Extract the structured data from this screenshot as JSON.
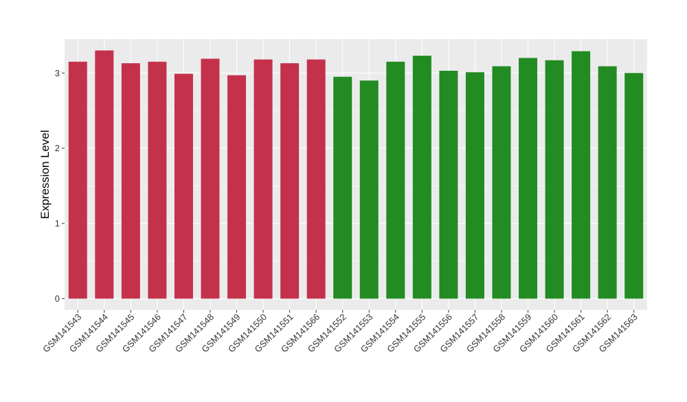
{
  "chart_data": {
    "type": "bar",
    "title": "",
    "xlabel": "",
    "ylabel": "Expression Level",
    "ylim": [
      -0.15,
      3.45
    ],
    "yticks": [
      0,
      1,
      2,
      3
    ],
    "grid": true,
    "legend": "none",
    "panel_background": "#EBEBEB",
    "gridline_color": "#FFFFFF",
    "categories": [
      "GSM141543",
      "GSM141544",
      "GSM141545",
      "GSM141546",
      "GSM141547",
      "GSM141548",
      "GSM141549",
      "GSM141550",
      "GSM141551",
      "GSM141566",
      "GSM141552",
      "GSM141553",
      "GSM141554",
      "GSM141555",
      "GSM141556",
      "GSM141557",
      "GSM141558",
      "GSM141559",
      "GSM141560",
      "GSM141561",
      "GSM141562",
      "GSM141563"
    ],
    "values": [
      3.15,
      3.3,
      3.13,
      3.15,
      2.99,
      3.19,
      2.97,
      3.18,
      3.13,
      3.18,
      2.95,
      2.9,
      3.15,
      3.23,
      3.03,
      3.01,
      3.09,
      3.2,
      3.17,
      3.29,
      3.09,
      3.0
    ],
    "bar_colors": [
      "#C4314B",
      "#C4314B",
      "#C4314B",
      "#C4314B",
      "#C4314B",
      "#C4314B",
      "#C4314B",
      "#C4314B",
      "#C4314B",
      "#C4314B",
      "#228B22",
      "#228B22",
      "#228B22",
      "#228B22",
      "#228B22",
      "#228B22",
      "#228B22",
      "#228B22",
      "#228B22",
      "#228B22",
      "#228B22",
      "#228B22"
    ]
  }
}
